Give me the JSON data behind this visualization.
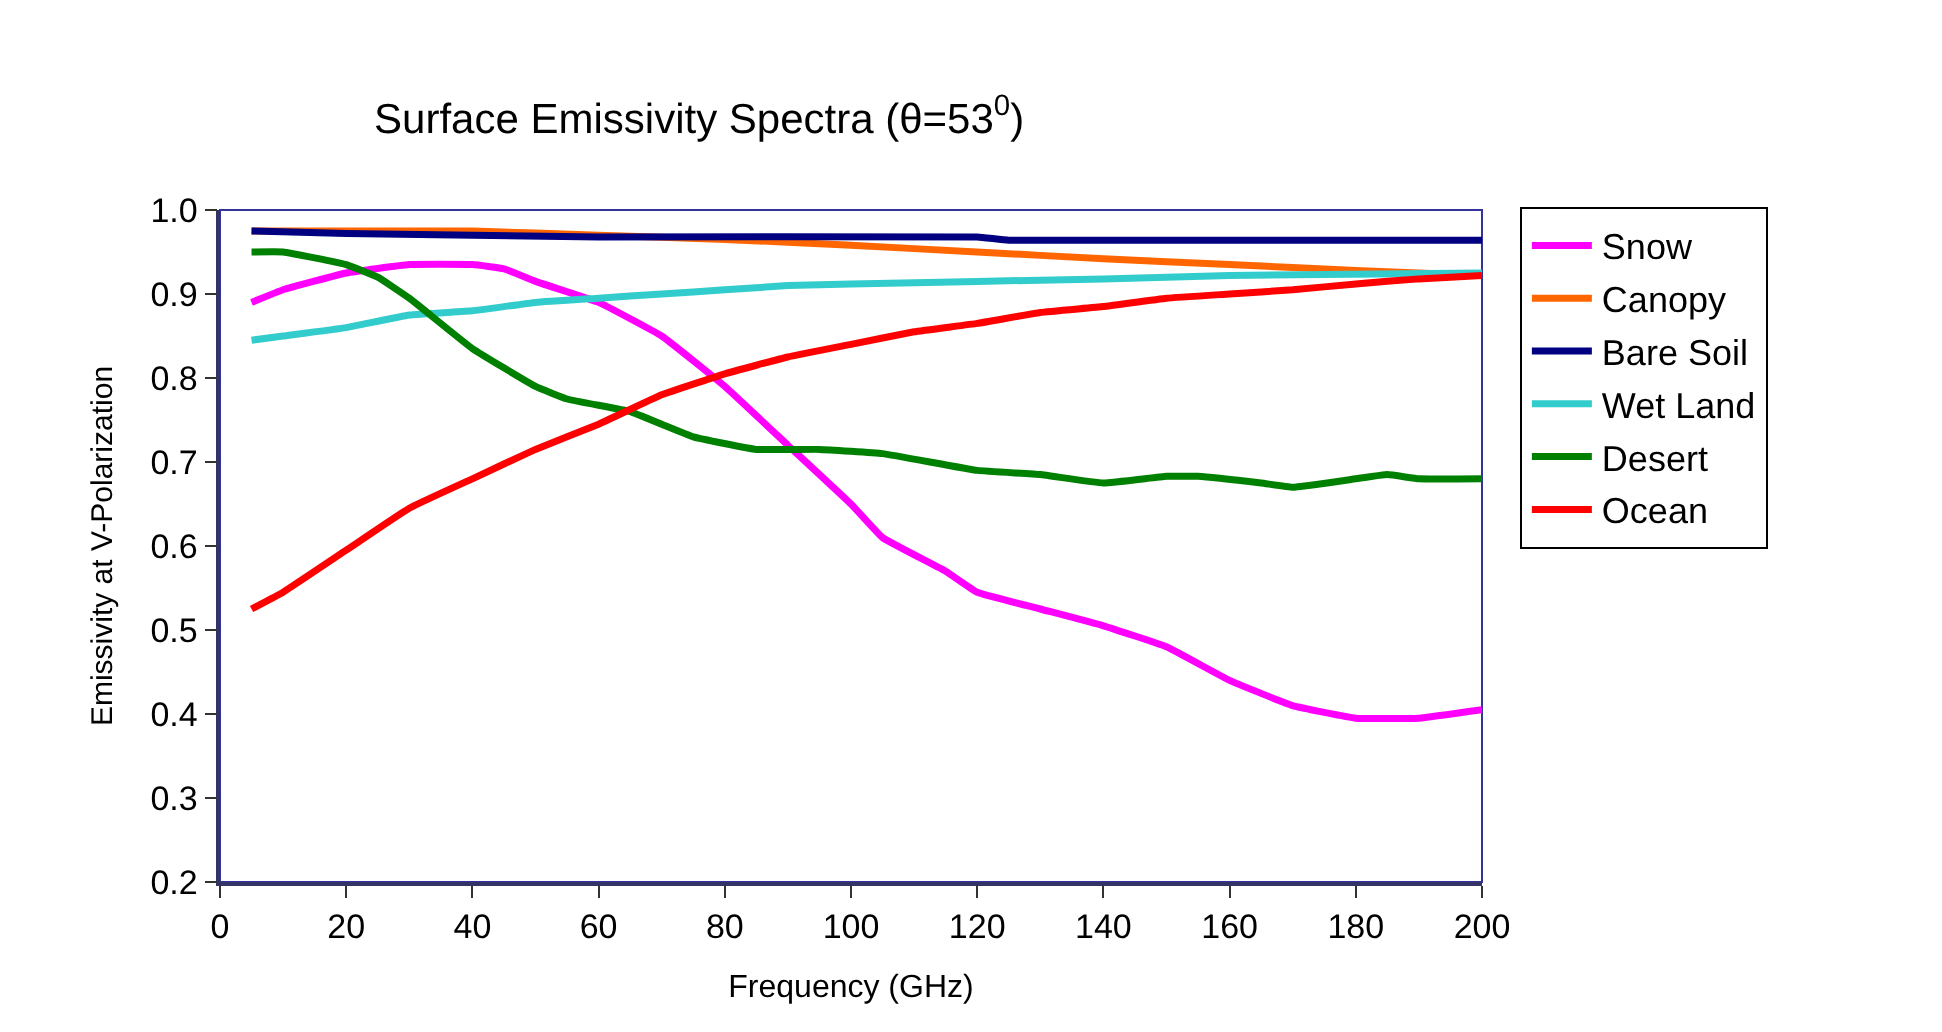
{
  "chart_data": {
    "type": "line",
    "title": "Surface Emissivity Spectra (θ=53$^{0}$)",
    "xlabel": "Frequency (GHz)",
    "ylabel": "Emissivity at V-Polarization",
    "xlim": [
      0,
      200
    ],
    "xticks": [
      0,
      20,
      40,
      60,
      80,
      100,
      120,
      140,
      160,
      180,
      200
    ],
    "ylim": [
      0.2,
      1.0
    ],
    "yticks": [
      {
        "value": 0.2,
        "label": "0.2"
      },
      {
        "value": 0.3,
        "label": "0.3"
      },
      {
        "value": 0.4,
        "label": "0.4"
      },
      {
        "value": 0.5,
        "label": "0.5"
      },
      {
        "value": 0.6,
        "label": "0.6"
      },
      {
        "value": 0.7,
        "label": "0.7"
      },
      {
        "value": 0.8,
        "label": "0.8"
      },
      {
        "value": 0.9,
        "label": "0.9"
      },
      {
        "value": 1.0,
        "label": "1.0"
      }
    ],
    "grid": false,
    "legend": "right",
    "marker": "none",
    "line_style": "solid",
    "series": [
      {
        "name": "Snow",
        "color": "#ff00ff",
        "x": [
          5,
          10,
          20,
          30,
          40,
          45,
          50,
          60,
          70,
          80,
          90,
          100,
          105,
          115,
          120,
          130,
          140,
          150,
          160,
          170,
          180,
          190,
          200
        ],
        "values": [
          0.89,
          0.905,
          0.925,
          0.935,
          0.935,
          0.93,
          0.915,
          0.89,
          0.85,
          0.79,
          0.72,
          0.65,
          0.61,
          0.57,
          0.545,
          0.525,
          0.505,
          0.48,
          0.44,
          0.41,
          0.395,
          0.395,
          0.405
        ]
      },
      {
        "name": "Canopy",
        "color": "#ff6600",
        "x": [
          5,
          40,
          60,
          80,
          100,
          120,
          140,
          160,
          180,
          200
        ],
        "values": [
          0.975,
          0.975,
          0.97,
          0.965,
          0.958,
          0.95,
          0.942,
          0.935,
          0.928,
          0.922
        ]
      },
      {
        "name": "Bare Soil",
        "color": "#000080",
        "x": [
          5,
          20,
          60,
          120,
          125,
          200
        ],
        "values": [
          0.975,
          0.972,
          0.968,
          0.968,
          0.964,
          0.964
        ]
      },
      {
        "name": "Wet Land",
        "color": "#33cccc",
        "x": [
          5,
          10,
          20,
          30,
          40,
          50,
          60,
          70,
          80,
          90,
          100,
          120,
          140,
          160,
          200
        ],
        "values": [
          0.845,
          0.85,
          0.86,
          0.875,
          0.88,
          0.89,
          0.895,
          0.9,
          0.905,
          0.91,
          0.912,
          0.915,
          0.918,
          0.922,
          0.925
        ]
      },
      {
        "name": "Desert",
        "color": "#008000",
        "x": [
          5,
          10,
          20,
          25,
          30,
          40,
          50,
          55,
          65,
          70,
          75,
          85,
          95,
          105,
          120,
          130,
          140,
          150,
          155,
          165,
          170,
          180,
          185,
          190,
          200
        ],
        "values": [
          0.95,
          0.95,
          0.935,
          0.92,
          0.895,
          0.835,
          0.79,
          0.775,
          0.76,
          0.745,
          0.73,
          0.715,
          0.715,
          0.71,
          0.69,
          0.685,
          0.675,
          0.683,
          0.683,
          0.675,
          0.67,
          0.68,
          0.685,
          0.68,
          0.68
        ]
      },
      {
        "name": "Ocean",
        "color": "#ff0000",
        "x": [
          5,
          10,
          20,
          30,
          40,
          50,
          60,
          70,
          80,
          90,
          100,
          110,
          120,
          130,
          140,
          150,
          160,
          170,
          180,
          190,
          200
        ],
        "values": [
          0.525,
          0.545,
          0.595,
          0.645,
          0.68,
          0.715,
          0.745,
          0.78,
          0.805,
          0.825,
          0.84,
          0.855,
          0.865,
          0.878,
          0.885,
          0.895,
          0.9,
          0.905,
          0.912,
          0.918,
          0.922
        ]
      }
    ]
  }
}
